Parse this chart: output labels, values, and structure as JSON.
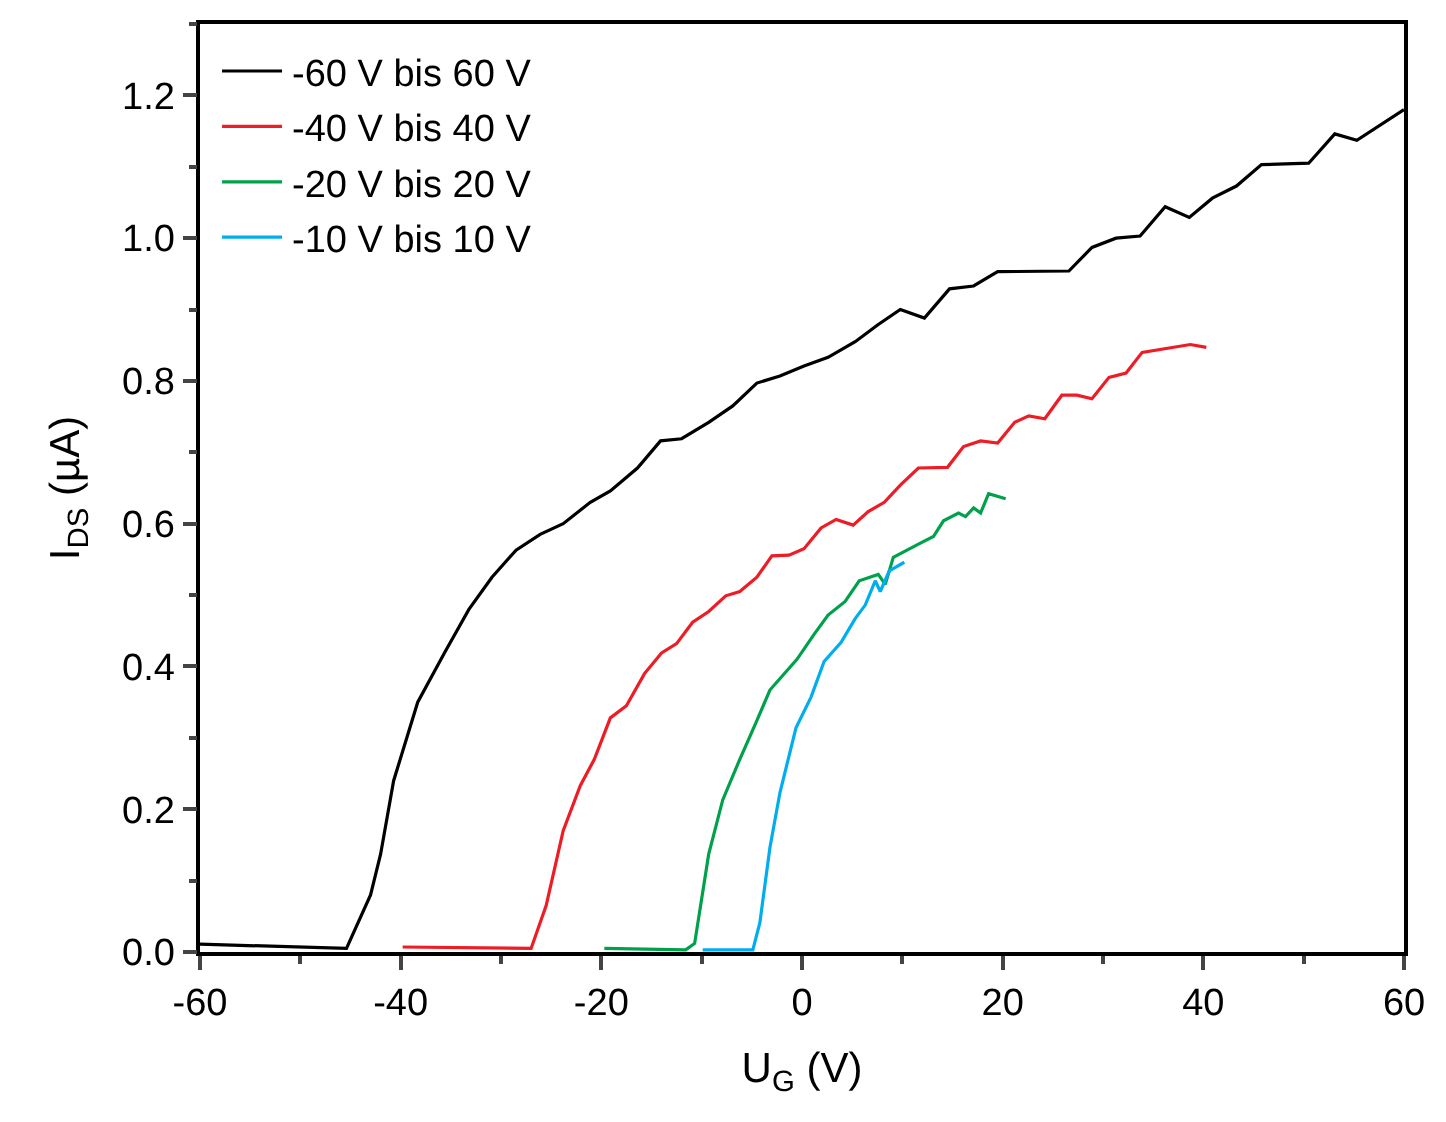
{
  "chart_data": {
    "type": "line",
    "xlabel": "U$_{G}$ (V)",
    "ylabel": "I$_{DS}$ (µA)",
    "xlim": [
      -60,
      60
    ],
    "ylim": [
      0,
      1.3
    ],
    "xticks": [
      -60,
      -40,
      -20,
      0,
      20,
      40,
      60
    ],
    "yticks": [
      {
        "value": 0,
        "label": "0.0"
      },
      {
        "value": 0.2,
        "label": "0.2"
      },
      {
        "value": 0.4,
        "label": "0.4"
      },
      {
        "value": 0.6,
        "label": "0.6"
      },
      {
        "value": 0.8,
        "label": "0.8"
      },
      {
        "value": 1.0,
        "label": "1.0"
      },
      {
        "value": 1.2,
        "label": "1.2"
      }
    ],
    "legend": "top left",
    "marker": "none",
    "line_style": "solid",
    "series": [
      {
        "name": "-60 V bis 60 V",
        "color": "#000000",
        "x": [
          -60,
          -45.4,
          -43.0,
          -42.0,
          -40.7,
          -38.3,
          -35.6,
          -33.2,
          -30.9,
          -28.5,
          -26.1,
          -23.8,
          -21.1,
          -19.1,
          -16.4,
          -14.1,
          -12.0,
          -9.3,
          -6.9,
          -4.5,
          -2.2,
          0.2,
          2.6,
          5.3,
          7.6,
          9.8,
          12.2,
          14.7,
          17.1,
          19.5,
          26.6,
          28.9,
          31.3,
          33.7,
          36.2,
          38.6,
          40.9,
          43.3,
          45.8,
          50.5,
          53.1,
          55.3,
          60
        ],
        "values": [
          0.011,
          0.005,
          0.08,
          0.137,
          0.24,
          0.35,
          0.42,
          0.48,
          0.525,
          0.563,
          0.585,
          0.6,
          0.63,
          0.646,
          0.678,
          0.716,
          0.719,
          0.742,
          0.765,
          0.797,
          0.807,
          0.821,
          0.833,
          0.855,
          0.879,
          0.9,
          0.888,
          0.929,
          0.933,
          0.953,
          0.954,
          0.987,
          1.0,
          1.003,
          1.044,
          1.029,
          1.056,
          1.073,
          1.103,
          1.105,
          1.146,
          1.137,
          1.18
        ]
      },
      {
        "name": "-40 V bis 40 V",
        "color": "#ee1c25",
        "x": [
          -39.8,
          -27.0,
          -25.5,
          -23.8,
          -22.1,
          -20.7,
          -19.1,
          -17.5,
          -15.7,
          -14.0,
          -12.5,
          -10.9,
          -9.3,
          -7.6,
          -6.2,
          -4.5,
          -3.0,
          -1.3,
          0.2,
          1.9,
          3.4,
          5.1,
          6.6,
          8.2,
          9.8,
          11.6,
          14.5,
          16.1,
          17.8,
          19.5,
          21.2,
          22.6,
          24.2,
          25.9,
          27.4,
          28.9,
          30.6,
          32.3,
          33.9,
          38.7,
          40.3
        ],
        "values": [
          0.007,
          0.005,
          0.065,
          0.17,
          0.233,
          0.27,
          0.328,
          0.345,
          0.39,
          0.419,
          0.432,
          0.462,
          0.477,
          0.499,
          0.505,
          0.525,
          0.555,
          0.556,
          0.565,
          0.594,
          0.606,
          0.598,
          0.617,
          0.63,
          0.654,
          0.678,
          0.679,
          0.708,
          0.716,
          0.713,
          0.742,
          0.751,
          0.747,
          0.78,
          0.78,
          0.775,
          0.805,
          0.811,
          0.84,
          0.851,
          0.847
        ]
      },
      {
        "name": "-20 V bis 20 V",
        "color": "#00a14b",
        "x": [
          -19.7,
          -11.6,
          -10.7,
          -9.3,
          -7.9,
          -6.2,
          -4.5,
          -3.2,
          -0.5,
          1.2,
          2.6,
          4.3,
          5.7,
          7.6,
          8.3,
          9.1,
          11.7,
          13.1,
          14.1,
          15.6,
          16.3,
          17.1,
          17.8,
          18.6,
          20.3
        ],
        "values": [
          0.005,
          0.003,
          0.012,
          0.137,
          0.213,
          0.27,
          0.324,
          0.367,
          0.41,
          0.445,
          0.472,
          0.491,
          0.52,
          0.529,
          0.515,
          0.553,
          0.572,
          0.582,
          0.604,
          0.615,
          0.61,
          0.622,
          0.615,
          0.642,
          0.635
        ]
      },
      {
        "name": "-10 V bis 10 V",
        "color": "#00aeef",
        "x": [
          -9.9,
          -4.9,
          -4.2,
          -3.2,
          -2.2,
          -0.6,
          0.9,
          2.2,
          3.9,
          5.3,
          6.3,
          7.3,
          7.8,
          8.7,
          10.2
        ],
        "values": [
          0.003,
          0.003,
          0.041,
          0.146,
          0.223,
          0.314,
          0.357,
          0.407,
          0.434,
          0.467,
          0.486,
          0.52,
          0.505,
          0.534,
          0.546
        ]
      }
    ]
  }
}
